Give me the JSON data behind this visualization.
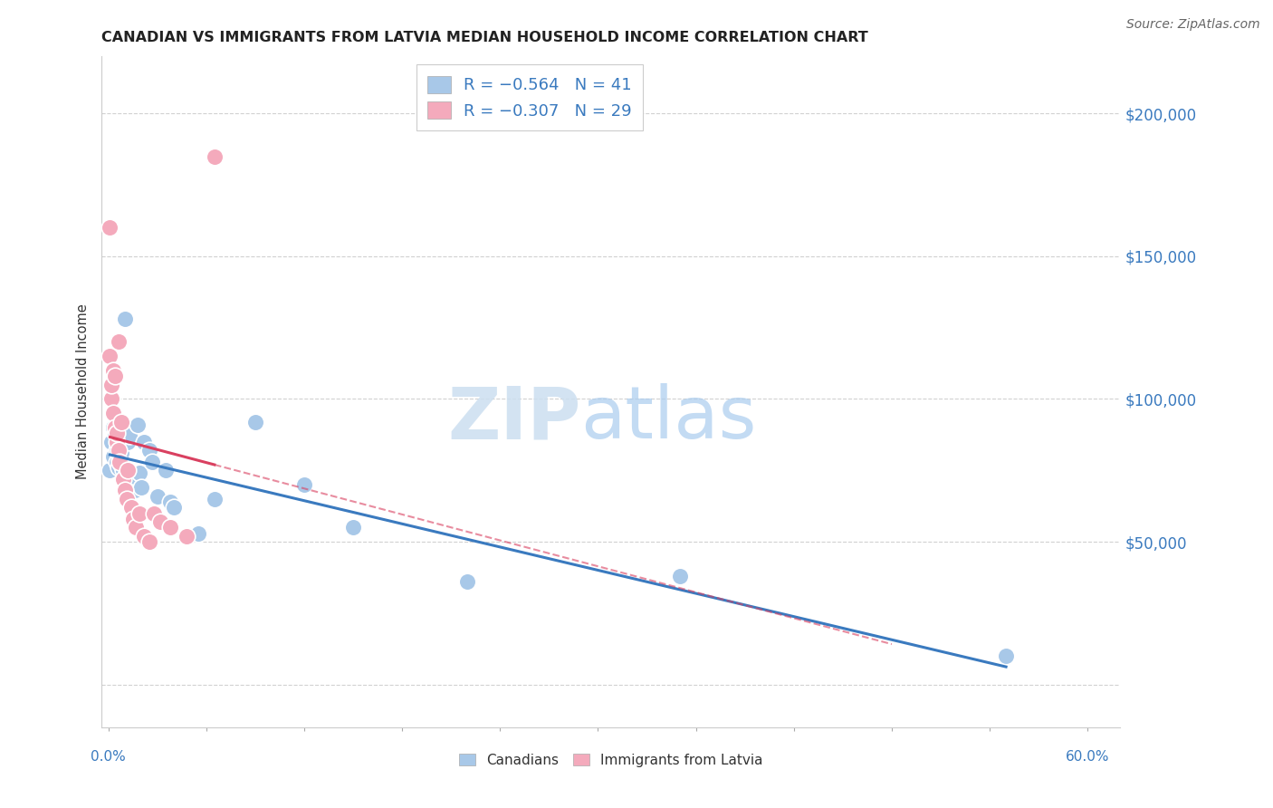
{
  "title": "CANADIAN VS IMMIGRANTS FROM LATVIA MEDIAN HOUSEHOLD INCOME CORRELATION CHART",
  "source": "Source: ZipAtlas.com",
  "ylabel": "Median Household Income",
  "legend_r1": "R = −0.564",
  "legend_n1": "N = 41",
  "legend_r2": "R = −0.307",
  "legend_n2": "N = 29",
  "canadians_color": "#a8c8e8",
  "immigrants_color": "#f4aabc",
  "trend_canadians_color": "#3a7abf",
  "trend_immigrants_color": "#d94060",
  "watermark_zip_color": "#d0e4f4",
  "watermark_atlas_color": "#b8d4ec",
  "canadians_x": [
    0.001,
    0.002,
    0.003,
    0.003,
    0.004,
    0.005,
    0.005,
    0.006,
    0.006,
    0.007,
    0.007,
    0.008,
    0.008,
    0.009,
    0.01,
    0.011,
    0.011,
    0.012,
    0.013,
    0.014,
    0.015,
    0.016,
    0.016,
    0.018,
    0.019,
    0.02,
    0.022,
    0.025,
    0.027,
    0.03,
    0.035,
    0.038,
    0.04,
    0.055,
    0.065,
    0.09,
    0.12,
    0.15,
    0.22,
    0.35,
    0.55
  ],
  "canadians_y": [
    75000,
    85000,
    80000,
    90000,
    88000,
    82000,
    78000,
    84000,
    76000,
    83000,
    79000,
    77000,
    81000,
    75000,
    128000,
    74000,
    71000,
    85000,
    87000,
    72000,
    70000,
    68000,
    73000,
    91000,
    74000,
    69000,
    85000,
    82000,
    78000,
    66000,
    75000,
    64000,
    62000,
    53000,
    65000,
    92000,
    70000,
    55000,
    36000,
    38000,
    10000
  ],
  "immigrants_x": [
    0.001,
    0.001,
    0.002,
    0.002,
    0.003,
    0.003,
    0.004,
    0.004,
    0.005,
    0.005,
    0.006,
    0.006,
    0.007,
    0.008,
    0.009,
    0.01,
    0.011,
    0.012,
    0.014,
    0.015,
    0.017,
    0.019,
    0.022,
    0.025,
    0.028,
    0.032,
    0.038,
    0.048,
    0.065
  ],
  "immigrants_y": [
    115000,
    160000,
    100000,
    105000,
    110000,
    95000,
    108000,
    90000,
    85000,
    88000,
    82000,
    120000,
    78000,
    92000,
    72000,
    68000,
    65000,
    75000,
    62000,
    58000,
    55000,
    60000,
    52000,
    50000,
    60000,
    57000,
    55000,
    52000,
    185000
  ],
  "xlim": [
    -0.004,
    0.62
  ],
  "ylim": [
    -15000,
    220000
  ],
  "ytick_vals": [
    0,
    50000,
    100000,
    150000,
    200000
  ],
  "xtick_vals": [
    0.0,
    0.06,
    0.12,
    0.18,
    0.24,
    0.3,
    0.36,
    0.42,
    0.48,
    0.54,
    0.6
  ]
}
